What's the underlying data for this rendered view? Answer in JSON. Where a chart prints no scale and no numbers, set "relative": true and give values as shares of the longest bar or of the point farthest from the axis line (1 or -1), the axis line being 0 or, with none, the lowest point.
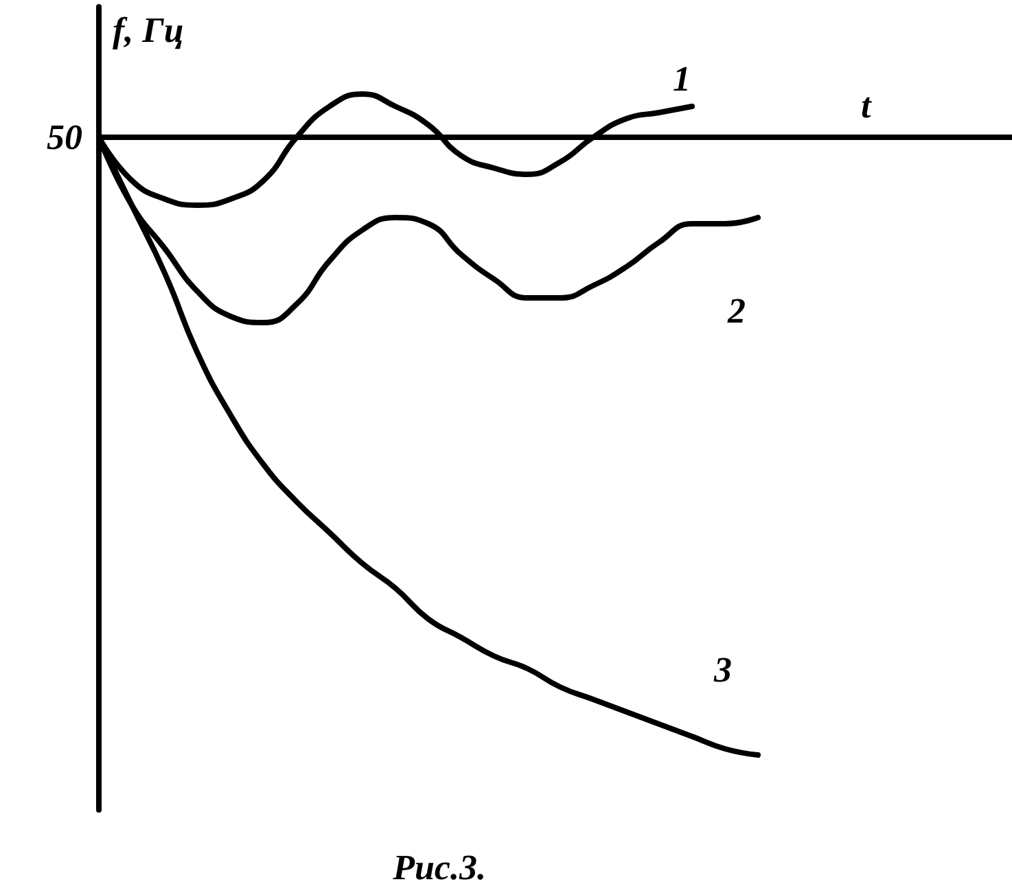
{
  "chart_data": {
    "type": "line",
    "relative": true,
    "xlabel": "t",
    "ylabel": "f, Гц",
    "annotations": [
      "50",
      "Рис.3."
    ],
    "legend": false,
    "grid": false,
    "marker": "none",
    "line_style": "solid",
    "categories": [
      null,
      null,
      null,
      null,
      null,
      null,
      null,
      null,
      null,
      null,
      null,
      null,
      null,
      null,
      null,
      null,
      null,
      null,
      null,
      null,
      null
    ],
    "series": [
      {
        "name": "1",
        "color": "#000000",
        "values": [
          0,
          -0.07,
          -0.1,
          -0.11,
          -0.1,
          -0.07,
          0,
          0.05,
          0.07,
          0.05,
          0.02,
          -0.03,
          -0.05,
          -0.06,
          -0.04,
          0,
          0.03,
          0.04,
          0.05,
          null,
          null
        ]
      },
      {
        "name": "2",
        "color": "#000000",
        "values": [
          0,
          -0.11,
          -0.18,
          -0.25,
          -0.29,
          -0.3,
          -0.27,
          -0.2,
          -0.15,
          -0.13,
          -0.14,
          -0.19,
          -0.23,
          -0.26,
          -0.26,
          -0.24,
          -0.21,
          -0.17,
          -0.14,
          -0.14,
          -0.13
        ]
      },
      {
        "name": "3",
        "color": "#000000",
        "values": [
          0,
          -0.11,
          -0.22,
          -0.35,
          -0.45,
          -0.53,
          -0.59,
          -0.64,
          -0.69,
          -0.73,
          -0.78,
          -0.81,
          -0.84,
          -0.86,
          -0.89,
          -0.91,
          -0.93,
          -0.95,
          -0.97,
          -0.99,
          -1
        ]
      }
    ]
  }
}
